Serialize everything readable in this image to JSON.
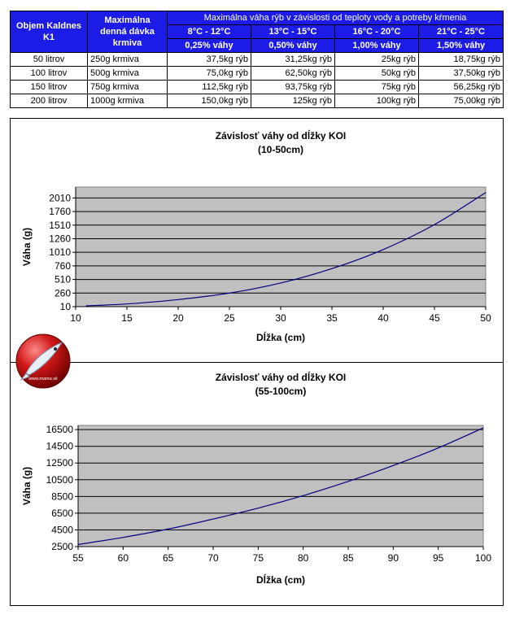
{
  "table": {
    "header": {
      "col1": "Objem Kaldnes K1",
      "col2": "Maximálna denná dávka krmiva",
      "group": "Maximálna váha rýb v závislosti od teploty vody a potreby kŕmenia",
      "temps": [
        "8°C - 12°C",
        "13°C - 15°C",
        "16°C - 20°C",
        "21°C - 25°C"
      ],
      "pcts": [
        "0,25% váhy",
        "0,50% váhy",
        "1,00% váhy",
        "1,50% váhy"
      ]
    },
    "rows": [
      {
        "volume": "50 litrov",
        "feed": "250g krmiva",
        "vals": [
          "37,5kg rýb",
          "31,25kg rýb",
          "25kg rýb",
          "18,75kg rýb"
        ]
      },
      {
        "volume": "100 litrov",
        "feed": "500g krmiva",
        "vals": [
          "75,0kg rýb",
          "62,50kg rýb",
          "50kg rýb",
          "37,50kg rýb"
        ]
      },
      {
        "volume": "150 litrov",
        "feed": "750g krmiva",
        "vals": [
          "112,5kg rýb",
          "93,75kg rýb",
          "75kg rýb",
          "56,25kg rýb"
        ]
      },
      {
        "volume": "200 litrov",
        "feed": "1000g krmiva",
        "vals": [
          "150,0kg rýb",
          "125kg rýb",
          "100kg rýb",
          "75,00kg rýb"
        ]
      }
    ]
  },
  "logo": {
    "text": "www.mama.sk",
    "color": "#d01818"
  },
  "chart_data": [
    {
      "type": "line",
      "title": "Závislosť váhy od dĺžky KOI",
      "subtitle": "(10-50cm)",
      "xlabel": "Dĺžka (cm)",
      "ylabel": "Váha (g)",
      "xlim": [
        10,
        50
      ],
      "ylim": [
        10,
        2210
      ],
      "xticks": [
        10,
        15,
        20,
        25,
        30,
        35,
        40,
        45,
        50
      ],
      "yticks": [
        10,
        260,
        510,
        760,
        1010,
        1260,
        1510,
        1760,
        2010
      ],
      "grid": true,
      "plot_bg": "#c0c0c0",
      "line_color": "#000080",
      "x": [
        11,
        15,
        20,
        25,
        30,
        35,
        40,
        45,
        50
      ],
      "y": [
        25,
        60,
        140,
        260,
        445,
        710,
        1060,
        1520,
        2110
      ]
    },
    {
      "type": "line",
      "title": "Závislosť váhy od dĺžky KOI",
      "subtitle": "(55-100cm)",
      "xlabel": "Dĺžka (cm)",
      "ylabel": "Váha (g)",
      "xlim": [
        55,
        100
      ],
      "ylim": [
        2500,
        17000
      ],
      "xticks": [
        55,
        60,
        65,
        70,
        75,
        80,
        85,
        90,
        95,
        100
      ],
      "yticks": [
        2500,
        4500,
        6500,
        8500,
        10500,
        12500,
        14500,
        16500
      ],
      "grid": true,
      "plot_bg": "#c0c0c0",
      "line_color": "#000080",
      "x": [
        55,
        60,
        65,
        70,
        75,
        80,
        85,
        90,
        95,
        100
      ],
      "y": [
        2750,
        3600,
        4600,
        5800,
        7100,
        8600,
        10300,
        12200,
        14300,
        16700
      ]
    }
  ]
}
